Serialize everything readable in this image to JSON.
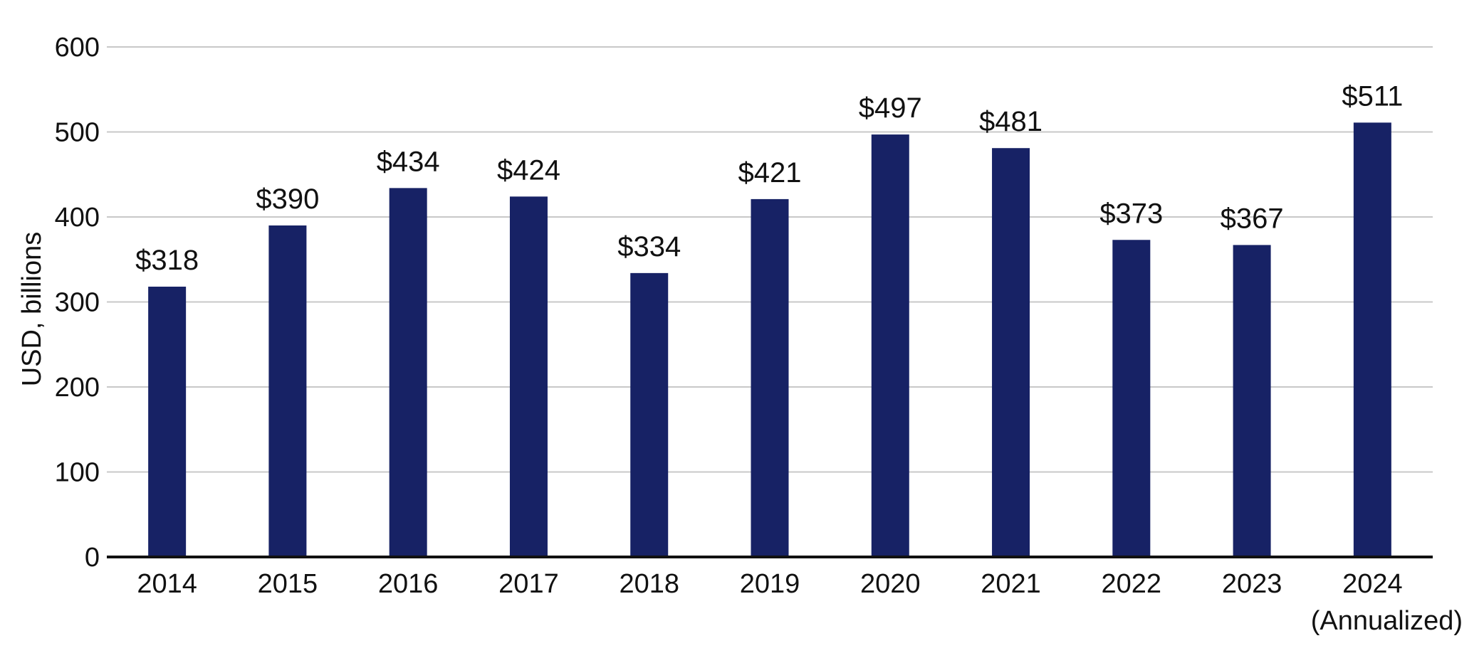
{
  "chart_data": {
    "type": "bar",
    "title": "",
    "xlabel": "",
    "ylabel": "USD, billions",
    "categories": [
      "2014",
      "2015",
      "2016",
      "2017",
      "2018",
      "2019",
      "2020",
      "2021",
      "2022",
      "2023",
      "2024"
    ],
    "category_sublabels": [
      "",
      "",
      "",
      "",
      "",
      "",
      "",
      "",
      "",
      "",
      "(Annualized)"
    ],
    "values": [
      318,
      390,
      434,
      424,
      334,
      421,
      497,
      481,
      373,
      367,
      511
    ],
    "data_labels": [
      "$318",
      "$390",
      "$434",
      "$424",
      "$334",
      "$421",
      "$497",
      "$481",
      "$373",
      "$367",
      "$511"
    ],
    "ylim": [
      0,
      600
    ],
    "yticks": [
      0,
      100,
      200,
      300,
      400,
      500,
      600
    ],
    "ytick_labels": [
      "0",
      "100",
      "200",
      "300",
      "400",
      "500",
      "600"
    ],
    "grid": true,
    "legend": "none",
    "colors": {
      "bar": "#172265",
      "grid": "#c8c8c8",
      "axis": "#111111"
    }
  }
}
